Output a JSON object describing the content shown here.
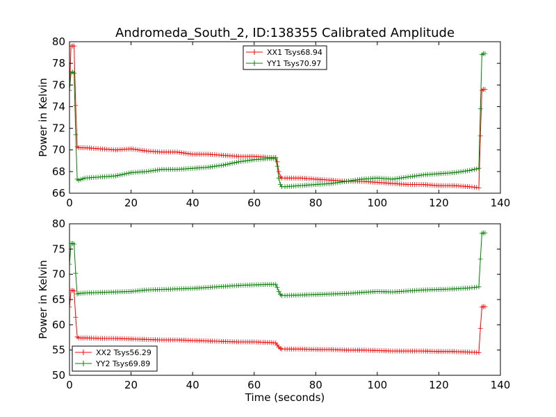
{
  "title": "Andromeda_South_2, ID:138355 Calibrated Amplitude",
  "colors": {
    "xx": "#ff0000",
    "yy": "#008000"
  },
  "chart_data": [
    {
      "type": "line",
      "xlabel": "",
      "ylabel": "Power in Kelvin",
      "xlim": [
        0,
        140
      ],
      "ylim": [
        66,
        80
      ],
      "xticks": [
        "0",
        "20",
        "40",
        "60",
        "80",
        "100",
        "120",
        "140"
      ],
      "yticks": [
        "66",
        "68",
        "70",
        "72",
        "74",
        "76",
        "78",
        "80"
      ],
      "legend_position": "upper-center",
      "grid": false,
      "series": [
        {
          "name": "XX1 Tsys68.94",
          "color": "#ff0000",
          "marker": "+",
          "x": [
            0,
            0.5,
            1,
            1.5,
            2,
            2.5,
            3,
            5,
            10,
            15,
            20,
            25,
            30,
            35,
            40,
            45,
            50,
            55,
            60,
            65,
            67,
            67.5,
            68,
            68.5,
            69,
            70,
            75,
            80,
            85,
            90,
            95,
            100,
            105,
            110,
            115,
            120,
            125,
            130,
            133,
            133.5,
            134,
            134.5,
            135
          ],
          "y": [
            75.5,
            79.6,
            79.6,
            79.6,
            74.1,
            70.3,
            70.2,
            70.2,
            70.1,
            70.0,
            70.1,
            69.9,
            69.8,
            69.8,
            69.6,
            69.6,
            69.5,
            69.4,
            69.4,
            69.3,
            69.3,
            68.9,
            68.0,
            67.5,
            67.4,
            67.4,
            67.4,
            67.3,
            67.2,
            67.1,
            67.1,
            67.0,
            66.9,
            66.8,
            66.8,
            66.7,
            66.7,
            66.6,
            66.5,
            71.3,
            75.5,
            75.6,
            75.6
          ]
        },
        {
          "name": "YY1 Tsys70.97",
          "color": "#008000",
          "marker": "+",
          "x": [
            0,
            0.5,
            1,
            1.5,
            2,
            2.5,
            3,
            5,
            10,
            15,
            20,
            25,
            30,
            35,
            40,
            45,
            50,
            55,
            60,
            65,
            67,
            67.5,
            68,
            68.5,
            69,
            70,
            75,
            80,
            85,
            90,
            95,
            100,
            105,
            110,
            115,
            120,
            125,
            130,
            133,
            133.5,
            134,
            134.5,
            135
          ],
          "y": [
            75.5,
            77.1,
            77.2,
            77.1,
            71.4,
            67.3,
            67.2,
            67.4,
            67.5,
            67.6,
            67.9,
            68.0,
            68.2,
            68.2,
            68.3,
            68.4,
            68.6,
            68.9,
            69.1,
            69.2,
            69.2,
            68.5,
            67.4,
            66.8,
            66.6,
            66.6,
            66.7,
            66.8,
            66.9,
            67.1,
            67.3,
            67.4,
            67.3,
            67.5,
            67.7,
            67.8,
            67.9,
            68.1,
            68.3,
            73.8,
            78.8,
            78.9,
            78.9
          ]
        }
      ]
    },
    {
      "type": "line",
      "xlabel": "Time (seconds)",
      "ylabel": "Power in Kelvin",
      "xlim": [
        0,
        140
      ],
      "ylim": [
        50,
        80
      ],
      "xticks": [
        "0",
        "20",
        "40",
        "60",
        "80",
        "100",
        "120",
        "140"
      ],
      "yticks": [
        "50",
        "55",
        "60",
        "65",
        "70",
        "75",
        "80"
      ],
      "legend_position": "lower-left",
      "grid": false,
      "series": [
        {
          "name": "XX2 Tsys56.29",
          "color": "#ff0000",
          "marker": "+",
          "x": [
            0,
            0.5,
            1,
            1.5,
            2,
            2.5,
            3,
            5,
            10,
            15,
            20,
            25,
            30,
            35,
            40,
            45,
            50,
            55,
            60,
            65,
            67,
            67.5,
            68,
            68.5,
            69,
            70,
            75,
            80,
            85,
            90,
            95,
            100,
            105,
            110,
            115,
            120,
            125,
            130,
            133,
            133.5,
            134,
            134.5,
            135
          ],
          "y": [
            63.5,
            66.8,
            66.8,
            66.7,
            61.5,
            57.6,
            57.4,
            57.4,
            57.3,
            57.3,
            57.2,
            57.1,
            57.0,
            57.0,
            56.9,
            56.8,
            56.7,
            56.6,
            56.6,
            56.5,
            56.4,
            56.0,
            55.6,
            55.3,
            55.2,
            55.2,
            55.2,
            55.1,
            55.1,
            55.0,
            55.0,
            54.9,
            54.8,
            54.8,
            54.8,
            54.7,
            54.7,
            54.6,
            54.5,
            59.3,
            63.5,
            63.6,
            63.6
          ]
        },
        {
          "name": "YY2 Tsys69.89",
          "color": "#008000",
          "marker": "+",
          "x": [
            0,
            0.5,
            1,
            1.5,
            2,
            2.5,
            3,
            5,
            10,
            15,
            20,
            25,
            30,
            35,
            40,
            45,
            50,
            55,
            60,
            65,
            67,
            67.5,
            68,
            68.5,
            69,
            70,
            75,
            80,
            85,
            90,
            95,
            100,
            105,
            110,
            115,
            120,
            125,
            130,
            133,
            133.5,
            134,
            134.5,
            135
          ],
          "y": [
            72.0,
            76.1,
            76.1,
            76.0,
            70.2,
            66.1,
            66.2,
            66.3,
            66.4,
            66.5,
            66.6,
            66.9,
            67.0,
            67.1,
            67.2,
            67.4,
            67.6,
            67.8,
            67.9,
            68.0,
            68.0,
            67.4,
            66.6,
            66.0,
            65.8,
            65.8,
            65.9,
            66.0,
            66.1,
            66.2,
            66.4,
            66.6,
            66.5,
            66.7,
            66.9,
            67.0,
            67.1,
            67.3,
            67.5,
            73.0,
            78.1,
            78.2,
            78.2
          ]
        }
      ]
    }
  ]
}
